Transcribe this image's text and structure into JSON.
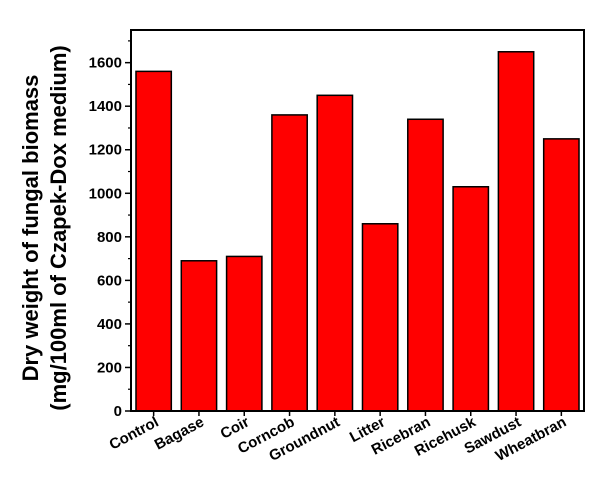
{
  "chart_data": {
    "type": "bar",
    "categories": [
      "Control",
      "Bagase",
      "Coir",
      "Corncob",
      "Groundnut",
      "Litter",
      "Ricebran",
      "Ricehusk",
      "Sawdust",
      "Wheatbran"
    ],
    "values": [
      1560,
      690,
      710,
      1360,
      1450,
      860,
      1340,
      1030,
      1650,
      1250
    ],
    "ylabel_line1": "Dry weight of fungal biomass",
    "ylabel_line2": "(mg/100ml of Czapek-Dox medium)",
    "ylim": [
      0,
      1750
    ],
    "yticks": [
      0,
      200,
      400,
      600,
      800,
      1000,
      1200,
      1400,
      1600
    ],
    "grid": false,
    "bar_color": "#ff0000",
    "edge_color": "#000000"
  }
}
